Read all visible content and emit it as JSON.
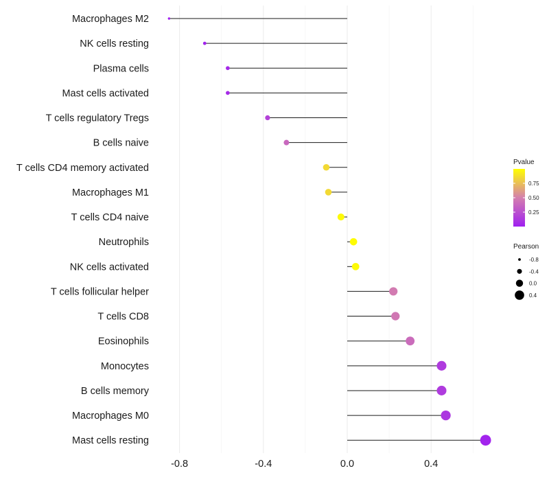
{
  "chart_data": {
    "type": "lollipop",
    "title": "",
    "xlabel": "",
    "ylabel": "",
    "xlim": [
      -0.9,
      0.7
    ],
    "x_ticks": [
      -0.8,
      -0.4,
      0.0,
      0.4
    ],
    "x_tick_labels": [
      "-0.8",
      "-0.4",
      "0.0",
      "0.4"
    ],
    "grid": true,
    "baseline": 0,
    "categories": [
      "Macrophages M2",
      "NK cells resting",
      "Plasma cells",
      "Mast cells activated",
      "T cells regulatory  Tregs",
      "B cells naive",
      "T cells CD4 memory activated",
      "Macrophages M1",
      "T cells CD4 naive",
      "Neutrophils",
      "NK cells activated",
      "T cells follicular helper",
      "T cells CD8",
      "Eosinophils",
      "Monocytes",
      "B cells memory",
      "Macrophages M0",
      "Mast cells resting"
    ],
    "pearson": [
      -0.85,
      -0.68,
      -0.57,
      -0.57,
      -0.38,
      -0.29,
      -0.1,
      -0.09,
      -0.03,
      0.03,
      0.04,
      0.22,
      0.23,
      0.3,
      0.45,
      0.45,
      0.47,
      0.66
    ],
    "pvalue": [
      0.01,
      0.02,
      0.05,
      0.06,
      0.18,
      0.38,
      0.85,
      0.85,
      0.98,
      0.99,
      0.98,
      0.48,
      0.46,
      0.4,
      0.14,
      0.14,
      0.12,
      0.02
    ],
    "legend_pvalue": {
      "title": "Pvalue",
      "ticks": [
        0.25,
        0.5,
        0.75
      ],
      "tick_labels": [
        "0.25",
        "0.50",
        "0.75"
      ],
      "range": [
        0,
        1
      ],
      "color_low": "#a020f0",
      "color_mid": "#d47fae",
      "color_high": "#ffff00",
      "placement": "right"
    },
    "legend_pearson": {
      "title": "Pearson",
      "values": [
        -0.8,
        -0.4,
        0.0,
        0.4
      ],
      "labels": [
        "-0.8",
        "-0.4",
        "0.0",
        "0.4"
      ],
      "placement": "right"
    }
  }
}
